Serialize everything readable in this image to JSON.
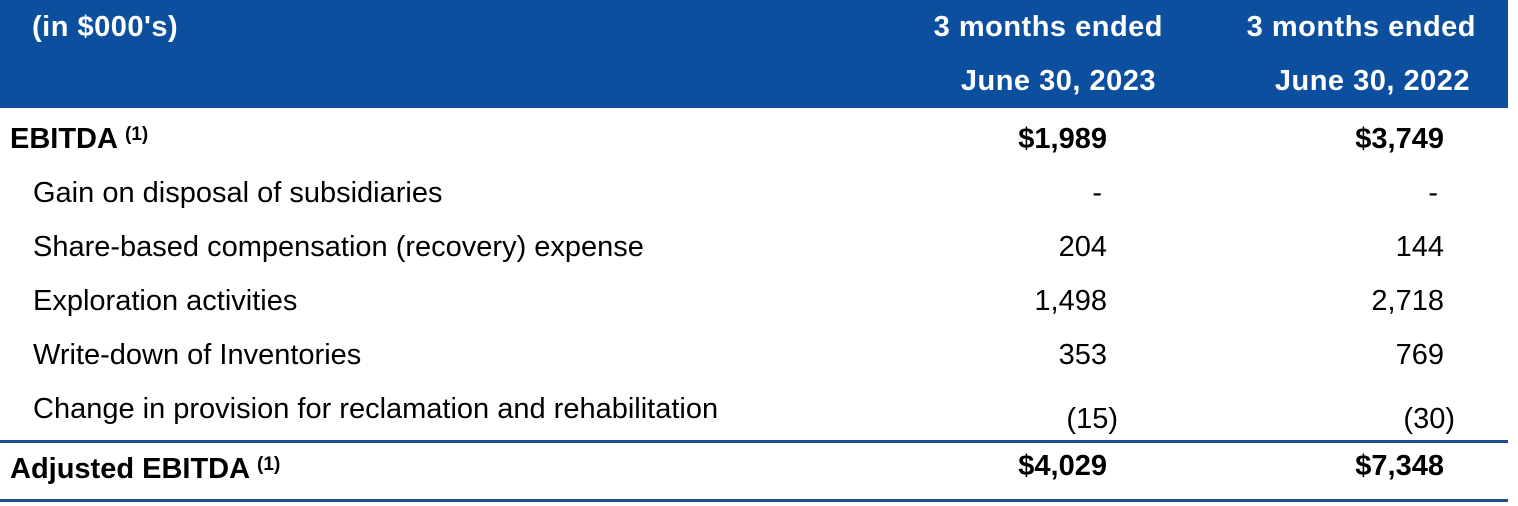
{
  "header": {
    "units": "(in $000's)",
    "columns": [
      {
        "line1": "3 months ended",
        "line2": "June 30, 2023"
      },
      {
        "line1": "3 months ended",
        "line2": "June 30, 2022"
      }
    ]
  },
  "ebitda": {
    "label": "EBITDA",
    "note": "(1)",
    "values": [
      "$1,989",
      "$3,749"
    ]
  },
  "rows": [
    {
      "label": "Gain on disposal of subsidiaries",
      "values": [
        "-",
        "-"
      ]
    },
    {
      "label": "Share-based compensation (recovery) expense",
      "values": [
        "204",
        "144"
      ]
    },
    {
      "label": "Exploration activities",
      "values": [
        "1,498",
        "2,718"
      ]
    },
    {
      "label": "Write-down of Inventories",
      "values": [
        "353",
        "769"
      ]
    },
    {
      "label": "Change in provision for reclamation and rehabilitation",
      "values": [
        "(15)",
        "(30)"
      ]
    }
  ],
  "adjusted": {
    "label": "Adjusted EBITDA",
    "note": "(1)",
    "values": [
      "$4,029",
      "$7,348"
    ]
  },
  "colors": {
    "header_bg": "#0b4f9e",
    "rule": "#1f4e8c"
  }
}
